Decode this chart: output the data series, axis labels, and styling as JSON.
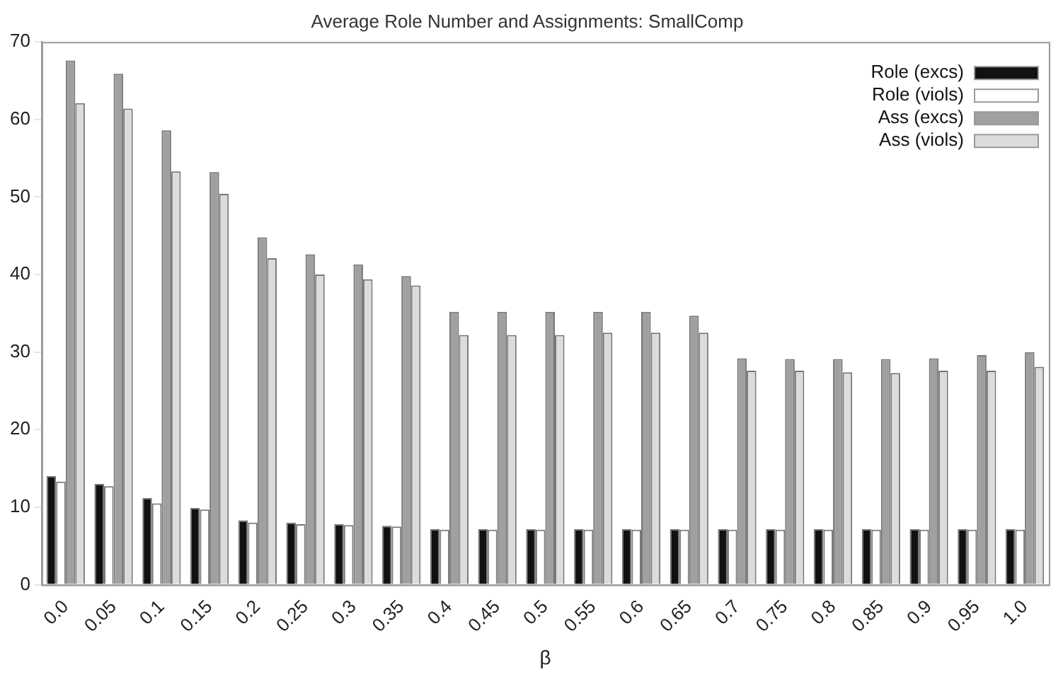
{
  "chart_data": {
    "type": "bar",
    "title": "Average Role Number and Assignments: SmallComp",
    "xlabel": "β",
    "categories": [
      "0.0",
      "0.05",
      "0.1",
      "0.15",
      "0.2",
      "0.25",
      "0.3",
      "0.35",
      "0.4",
      "0.45",
      "0.5",
      "0.55",
      "0.6",
      "0.65",
      "0.7",
      "0.75",
      "0.8",
      "0.85",
      "0.9",
      "0.95",
      "1.0"
    ],
    "series": [
      {
        "name": "Role (excs)",
        "color": "#111111",
        "values": [
          14,
          13,
          11.2,
          9.9,
          8.3,
          8,
          7.8,
          7.6,
          7.2,
          7.2,
          7.2,
          7.2,
          7.2,
          7.2,
          7.2,
          7.2,
          7.2,
          7.2,
          7.2,
          7.2,
          7.2
        ]
      },
      {
        "name": "Role (viols)",
        "color": "#ffffff",
        "values": [
          13.3,
          12.7,
          10.5,
          9.7,
          8,
          7.8,
          7.7,
          7.5,
          7.1,
          7.1,
          7.1,
          7.1,
          7.1,
          7.1,
          7.1,
          7.1,
          7.1,
          7.1,
          7.1,
          7.1,
          7.1
        ]
      },
      {
        "name": "Ass (excs)",
        "color": "#a0a0a0",
        "values": [
          67.6,
          65.9,
          58.6,
          53.2,
          44.8,
          42.6,
          41.3,
          39.8,
          35.2,
          35.2,
          35.2,
          35.2,
          35.2,
          34.7,
          29.2,
          29.1,
          29.1,
          29.1,
          29.2,
          29.6,
          30
        ]
      },
      {
        "name": "Ass (viols)",
        "color": "#dcdcdc",
        "values": [
          62.1,
          61.4,
          53.3,
          50.4,
          42.1,
          40,
          39.4,
          38.6,
          32.2,
          32.2,
          32.2,
          32.5,
          32.5,
          32.5,
          27.6,
          27.6,
          27.4,
          27.3,
          27.6,
          27.6,
          28.1
        ]
      }
    ],
    "ylim": [
      0,
      70
    ],
    "yticks": [
      0,
      10,
      20,
      30,
      40,
      50,
      60,
      70
    ],
    "grid": false,
    "legend": "top right"
  }
}
